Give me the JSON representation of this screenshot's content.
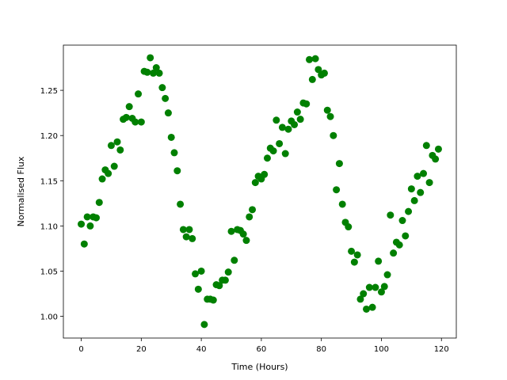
{
  "chart_data": {
    "type": "scatter",
    "xlabel": "Time (Hours)",
    "ylabel": "Normalised Flux",
    "color": "#008000",
    "x": [
      0,
      1,
      2,
      3,
      4,
      5,
      6,
      7,
      8,
      9,
      10,
      11,
      12,
      13,
      14,
      15,
      16,
      17,
      18,
      19,
      20,
      21,
      22,
      23,
      24,
      25,
      26,
      27,
      28,
      29,
      30,
      31,
      32,
      33,
      34,
      35,
      36,
      37,
      38,
      39,
      40,
      41,
      42,
      43,
      44,
      45,
      46,
      47,
      48,
      49,
      50,
      51,
      52,
      53,
      54,
      55,
      56,
      57,
      58,
      59,
      60,
      61,
      62,
      63,
      64,
      65,
      66,
      67,
      68,
      69,
      70,
      71,
      72,
      73,
      74,
      75,
      76,
      77,
      78,
      79,
      80,
      81,
      82,
      83,
      84,
      85,
      86,
      87,
      88,
      89,
      90,
      91,
      92,
      93,
      94,
      95,
      96,
      97,
      98,
      99,
      100,
      101,
      102,
      103,
      104,
      105,
      106,
      107,
      108,
      109,
      110,
      111,
      112,
      113,
      114,
      115,
      116,
      117,
      118,
      119
    ],
    "values": [
      1.102,
      1.08,
      1.11,
      1.1,
      1.11,
      1.109,
      1.126,
      1.152,
      1.162,
      1.158,
      1.189,
      1.166,
      1.193,
      1.184,
      1.218,
      1.22,
      1.232,
      1.219,
      1.215,
      1.246,
      1.215,
      1.271,
      1.27,
      1.286,
      1.269,
      1.275,
      1.269,
      1.253,
      1.241,
      1.225,
      1.198,
      1.181,
      1.161,
      1.124,
      1.096,
      1.088,
      1.096,
      1.086,
      1.047,
      1.03,
      1.05,
      0.991,
      1.019,
      1.019,
      1.018,
      1.035,
      1.034,
      1.04,
      1.04,
      1.049,
      1.094,
      1.062,
      1.096,
      1.095,
      1.091,
      1.084,
      1.11,
      1.118,
      1.148,
      1.155,
      1.152,
      1.157,
      1.175,
      1.186,
      1.183,
      1.217,
      1.191,
      1.209,
      1.18,
      1.207,
      1.216,
      1.212,
      1.226,
      1.218,
      1.236,
      1.235,
      1.284,
      1.262,
      1.285,
      1.273,
      1.267,
      1.269,
      1.228,
      1.221,
      1.2,
      1.14,
      1.169,
      1.124,
      1.104,
      1.099,
      1.072,
      1.06,
      1.068,
      1.019,
      1.025,
      1.008,
      1.032,
      1.01,
      1.032,
      1.061,
      1.027,
      1.033,
      1.046,
      1.112,
      1.07,
      1.082,
      1.079,
      1.106,
      1.089,
      1.116,
      1.141,
      1.128,
      1.155,
      1.137,
      1.158,
      1.189,
      1.148,
      1.178,
      1.174,
      1.185
    ],
    "xlim": [
      -5.95,
      124.95
    ],
    "xticks": [
      0,
      20,
      40,
      60,
      80,
      100,
      120
    ],
    "ylim": [
      0.976,
      1.3
    ],
    "yticks": [
      {
        "value": 1.0,
        "label": "1.00"
      },
      1.05,
      {
        "value": 1.1,
        "label": "1.10"
      },
      1.15,
      {
        "value": 1.2,
        "label": "1.20"
      },
      1.25
    ]
  }
}
